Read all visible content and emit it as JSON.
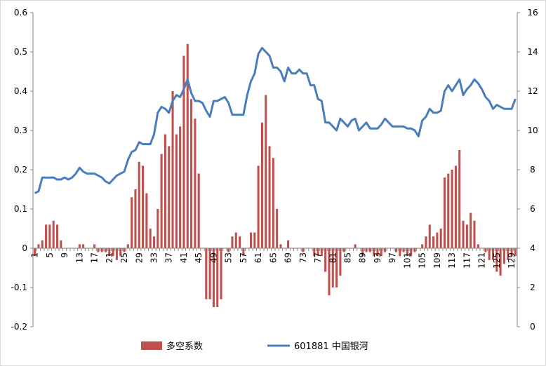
{
  "chart_data": {
    "type": "bar+line",
    "title": "",
    "x": {
      "start": 1,
      "end": 130,
      "tick_labels": [
        "1",
        "5",
        "9",
        "13",
        "17",
        "21",
        "25",
        "29",
        "33",
        "37",
        "41",
        "45",
        "49",
        "53",
        "57",
        "61",
        "65",
        "69",
        "73",
        "77",
        "81",
        "85",
        "89",
        "93",
        "97",
        "101",
        "105",
        "109",
        "113",
        "117",
        "121",
        "125",
        "129"
      ]
    },
    "y_left": {
      "lim": [
        -0.2,
        0.6
      ],
      "ticks": [
        "-0.2",
        "-0.1",
        "0",
        "0.1",
        "0.2",
        "0.3",
        "0.4",
        "0.5",
        "0.6"
      ],
      "tick_values": [
        -0.2,
        -0.1,
        0,
        0.1,
        0.2,
        0.3,
        0.4,
        0.5,
        0.6
      ]
    },
    "y_right": {
      "lim": [
        0,
        16
      ],
      "ticks": [
        "0",
        "2",
        "4",
        "6",
        "8",
        "10",
        "12",
        "14",
        "16"
      ],
      "tick_values": [
        0,
        2,
        4,
        6,
        8,
        10,
        12,
        14,
        16
      ]
    },
    "gridlines": false,
    "legend_position": "bottom",
    "colors": {
      "bar": "#c0504d",
      "line": "#4a7ebb",
      "axis": "#868686"
    },
    "series": [
      {
        "name": "多空系数",
        "type": "bar",
        "axis": "left",
        "values": [
          -0.02,
          0.01,
          0.02,
          0.06,
          0.06,
          0.07,
          0.06,
          0.02,
          0.0,
          0.0,
          0.0,
          0.0,
          0.01,
          0.01,
          0.0,
          0.0,
          0.01,
          -0.01,
          -0.01,
          -0.01,
          -0.02,
          -0.02,
          -0.03,
          -0.02,
          -0.01,
          0.01,
          0.13,
          0.15,
          0.22,
          0.21,
          0.14,
          0.05,
          0.03,
          0.1,
          0.24,
          0.29,
          0.26,
          0.4,
          0.29,
          0.31,
          0.49,
          0.52,
          0.38,
          0.33,
          0.19,
          0.0,
          -0.13,
          -0.13,
          -0.15,
          -0.15,
          -0.13,
          0.0,
          -0.01,
          0.03,
          0.04,
          0.03,
          -0.02,
          0.0,
          0.04,
          0.04,
          0.21,
          0.32,
          0.39,
          0.26,
          0.23,
          0.1,
          0.01,
          0.0,
          0.02,
          0.0,
          0.0,
          0.0,
          -0.01,
          0.0,
          0.0,
          -0.02,
          -0.02,
          -0.02,
          -0.06,
          -0.12,
          -0.1,
          -0.1,
          -0.07,
          -0.01,
          0.0,
          0.0,
          0.01,
          0.0,
          -0.02,
          -0.01,
          -0.01,
          -0.02,
          -0.02,
          -0.02,
          -0.01,
          0.0,
          0.0,
          -0.01,
          -0.02,
          -0.01,
          -0.02,
          -0.02,
          -0.01,
          0.0,
          0.01,
          0.03,
          0.06,
          0.03,
          0.04,
          0.05,
          0.18,
          0.19,
          0.2,
          0.21,
          0.25,
          0.07,
          0.06,
          0.09,
          0.07,
          0.01,
          0.0,
          -0.01,
          -0.03,
          -0.03,
          -0.06,
          -0.07,
          -0.04,
          -0.03,
          -0.02,
          -0.02
        ]
      },
      {
        "name": "601881 中国银河",
        "type": "line",
        "axis": "right",
        "values": [
          6.8,
          6.9,
          7.6,
          7.6,
          7.6,
          7.6,
          7.5,
          7.5,
          7.6,
          7.5,
          7.6,
          7.8,
          8.1,
          7.9,
          7.8,
          7.8,
          7.8,
          7.7,
          7.6,
          7.4,
          7.3,
          7.5,
          7.7,
          7.8,
          7.9,
          8.5,
          8.9,
          9.0,
          9.4,
          9.3,
          9.3,
          9.3,
          9.8,
          10.9,
          11.2,
          11.1,
          10.9,
          11.5,
          11.8,
          11.7,
          12.1,
          12.6,
          11.9,
          11.5,
          11.5,
          11.4,
          11.0,
          10.7,
          11.5,
          11.5,
          11.6,
          11.7,
          11.4,
          10.8,
          10.8,
          10.8,
          10.8,
          11.8,
          12.5,
          12.9,
          13.9,
          14.2,
          14.0,
          13.8,
          13.2,
          13.2,
          13.0,
          12.5,
          13.2,
          12.9,
          12.9,
          13.1,
          12.9,
          12.9,
          12.3,
          12.3,
          11.6,
          11.5,
          10.4,
          10.4,
          10.2,
          10.0,
          10.6,
          10.4,
          10.2,
          10.5,
          10.6,
          10.0,
          10.2,
          10.4,
          10.1,
          10.1,
          10.1,
          10.3,
          10.6,
          10.4,
          10.2,
          10.2,
          10.2,
          10.2,
          10.1,
          10.1,
          10.0,
          9.7,
          10.5,
          10.7,
          11.1,
          10.9,
          10.9,
          11.0,
          12.0,
          12.3,
          12.0,
          12.3,
          12.6,
          11.8,
          12.1,
          12.3,
          12.6,
          12.4,
          12.1,
          11.7,
          11.5,
          11.1,
          11.3,
          11.2,
          11.1,
          11.1,
          11.1,
          11.6
        ]
      }
    ]
  }
}
